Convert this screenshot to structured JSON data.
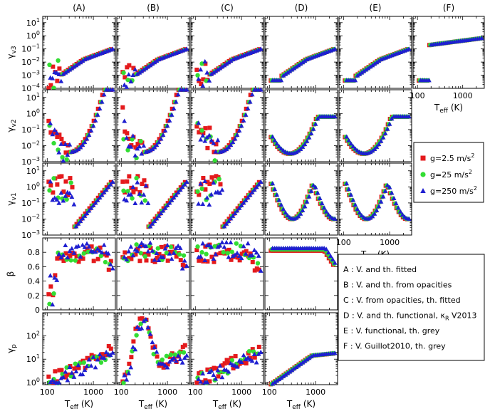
{
  "chart_data": {
    "type": "scatter",
    "column_titles": [
      "(A)",
      "(B)",
      "(C)",
      "(D)",
      "(E)",
      "(F)"
    ],
    "x_axis": {
      "label": "T_eff (K)",
      "scale": "log",
      "range": [
        80,
        3000
      ],
      "ticks": [
        "100",
        "1000"
      ]
    },
    "rows": [
      {
        "key": "gv3",
        "label": "γv3",
        "scale": "log",
        "range": [
          0.0001,
          30
        ],
        "ticks": [
          "10^1",
          "10^0",
          "10^-1",
          "10^-2",
          "10^-3",
          "10^-4"
        ]
      },
      {
        "key": "gv2",
        "label": "γv2",
        "scale": "log",
        "range": [
          0.001,
          30
        ],
        "ticks": [
          "10^1",
          "10^0",
          "10^-1",
          "10^-2",
          "10^-3"
        ]
      },
      {
        "key": "gv1",
        "label": "γv1",
        "scale": "log",
        "range": [
          0.001,
          30
        ],
        "ticks": [
          "10^1",
          "10^0",
          "10^-1",
          "10^-2",
          "10^-3"
        ]
      },
      {
        "key": "beta",
        "label": "β",
        "scale": "linear",
        "range": [
          0,
          1.0
        ],
        "ticks": [
          "0.8",
          "0.6",
          "0.4",
          "0.2",
          "0"
        ]
      },
      {
        "key": "gp",
        "label": "γp",
        "scale": "log",
        "range": [
          0.8,
          1000
        ],
        "ticks": [
          "10^2",
          "10^1",
          "10^0"
        ]
      }
    ],
    "series": [
      {
        "name": "g=2.5 m/s^2",
        "color": "#e41a1c",
        "marker": "square"
      },
      {
        "name": "g=25 m/s^2",
        "color": "#33dd33",
        "marker": "circle"
      },
      {
        "name": "g=250 m/s^2",
        "color": "#1f1fd0",
        "marker": "triangle"
      }
    ],
    "legend_position": "right",
    "annotation_box": [
      "A : V. and th. fitted",
      "B : V. and th. from opacities",
      "C : V. from opacities, th. fitted",
      "D : V. and th. functional, κR V2013",
      "E : V. functional, th. grey",
      "F : V. Guillot2010, th. grey"
    ]
  },
  "labels": {
    "xlabel_text": "T",
    "xlabel_sub": "eff",
    "xlabel_unit": " (K)",
    "legend_unit_prefix": " m/s"
  }
}
